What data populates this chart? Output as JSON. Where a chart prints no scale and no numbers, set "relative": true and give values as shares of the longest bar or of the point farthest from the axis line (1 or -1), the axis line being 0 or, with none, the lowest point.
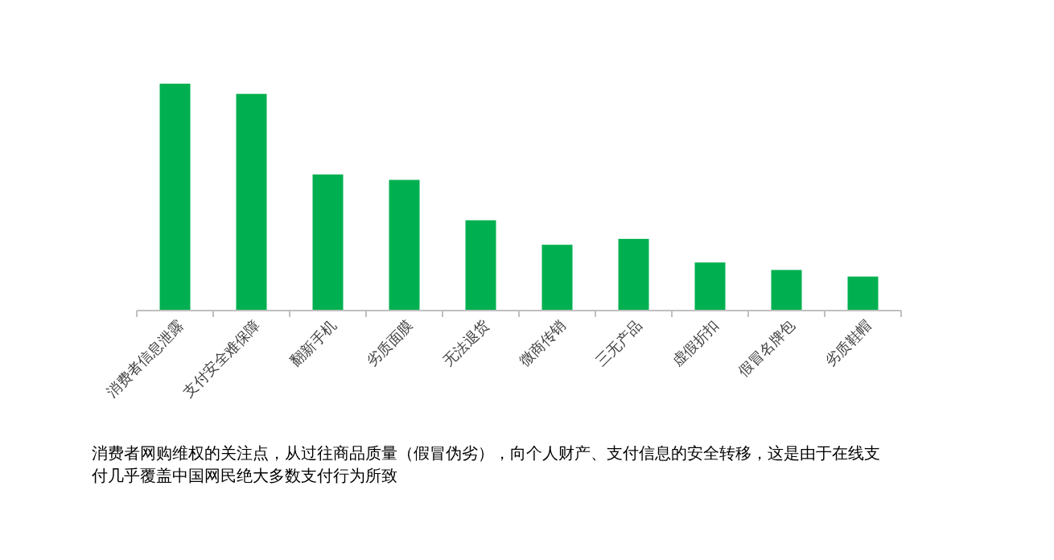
{
  "chart_data": {
    "type": "bar",
    "relative": true,
    "color": "#00b050",
    "categories": [
      "消费者信息泄露",
      "支付安全难保障",
      "翻新手机",
      "劣质面膜",
      "无法退货",
      "微商传销",
      "三无产品",
      "虚假折扣",
      "假冒名牌包",
      "劣质鞋帽"
    ],
    "values": [
      1,
      0.955,
      0.6,
      0.576,
      0.398,
      0.29,
      0.316,
      0.212,
      0.179,
      0.15
    ],
    "annotations": [
      "消费者网购维权的关注点，从过往商品质量（假冒伪劣），向个人财产、支付信息的安全转移，这是由于在线支付几乎覆盖中国网民绝大多数支付行为所致"
    ]
  }
}
